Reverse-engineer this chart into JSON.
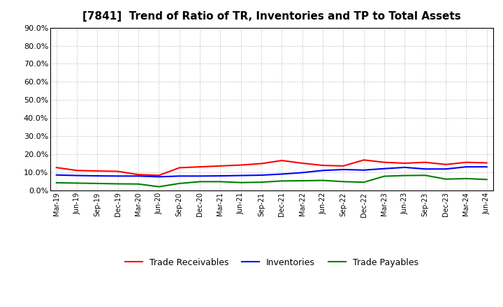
{
  "title": "[7841]  Trend of Ratio of TR, Inventories and TP to Total Assets",
  "labels": [
    "Mar-19",
    "Jun-19",
    "Sep-19",
    "Dec-19",
    "Mar-20",
    "Jun-20",
    "Sep-20",
    "Dec-20",
    "Mar-21",
    "Jun-21",
    "Sep-21",
    "Dec-21",
    "Mar-22",
    "Jun-22",
    "Sep-22",
    "Dec-22",
    "Mar-23",
    "Jun-23",
    "Sep-23",
    "Dec-23",
    "Mar-24",
    "Jun-24"
  ],
  "trade_receivables": [
    0.126,
    0.11,
    0.107,
    0.105,
    0.087,
    0.083,
    0.125,
    0.13,
    0.135,
    0.14,
    0.148,
    0.165,
    0.15,
    0.138,
    0.135,
    0.168,
    0.155,
    0.15,
    0.155,
    0.143,
    0.155,
    0.152
  ],
  "inventories": [
    0.085,
    0.082,
    0.08,
    0.079,
    0.079,
    0.075,
    0.079,
    0.079,
    0.08,
    0.082,
    0.084,
    0.09,
    0.098,
    0.11,
    0.115,
    0.112,
    0.12,
    0.127,
    0.118,
    0.118,
    0.13,
    0.13
  ],
  "trade_payables": [
    0.042,
    0.04,
    0.038,
    0.036,
    0.035,
    0.02,
    0.038,
    0.048,
    0.048,
    0.043,
    0.045,
    0.052,
    0.053,
    0.055,
    0.048,
    0.045,
    0.078,
    0.082,
    0.083,
    0.062,
    0.065,
    0.06
  ],
  "tr_color": "#FF0000",
  "inv_color": "#0000FF",
  "tp_color": "#008000",
  "ylim": [
    0.0,
    0.9
  ],
  "yticks": [
    0.0,
    0.1,
    0.2,
    0.3,
    0.4,
    0.5,
    0.6,
    0.7,
    0.8,
    0.9
  ],
  "ytick_labels": [
    "0.0%",
    "10.0%",
    "20.0%",
    "30.0%",
    "40.0%",
    "50.0%",
    "60.0%",
    "70.0%",
    "80.0%",
    "90.0%"
  ],
  "bg_color": "#FFFFFF",
  "grid_color": "#999999",
  "legend_labels": [
    "Trade Receivables",
    "Inventories",
    "Trade Payables"
  ]
}
